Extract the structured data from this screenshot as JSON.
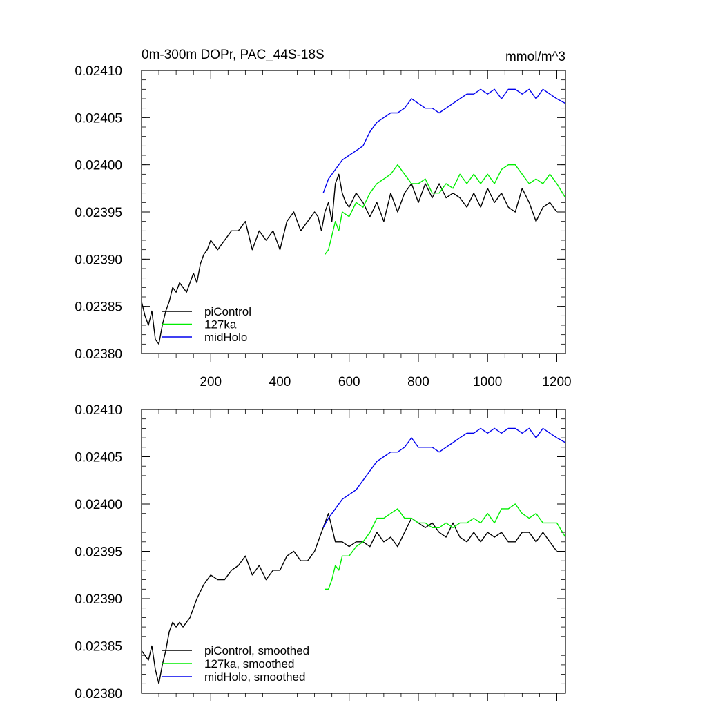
{
  "colors": {
    "piControl": "#000000",
    "127ka": "#00ee00",
    "midHolo": "#0000ee",
    "axis": "#000000",
    "background": "#ffffff"
  },
  "chart_data": [
    {
      "type": "line",
      "title": "0m-300m DOPr, PAC_44S-18S",
      "units": "mmol/m^3",
      "xlabel": "",
      "ylabel": "",
      "xlim": [
        0,
        1225
      ],
      "ylim": [
        0.0238,
        0.0241
      ],
      "xticks": [
        200,
        400,
        600,
        800,
        1000,
        1200
      ],
      "xtick_labels": [
        "200",
        "400",
        "600",
        "800",
        "1000",
        "1200"
      ],
      "yticks": [
        0.0238,
        0.02385,
        0.0239,
        0.02395,
        0.024,
        0.02405,
        0.0241
      ],
      "ytick_labels": [
        "0.02380",
        "0.02385",
        "0.02390",
        "0.02395",
        "0.02400",
        "0.02405",
        "0.02410"
      ],
      "grid": false,
      "legend_position": "bottom-left",
      "series": [
        {
          "name": "piControl",
          "color": "#000000",
          "x": [
            0,
            10,
            20,
            30,
            40,
            50,
            60,
            70,
            80,
            90,
            100,
            110,
            120,
            130,
            140,
            150,
            160,
            170,
            180,
            190,
            200,
            220,
            240,
            260,
            280,
            300,
            320,
            340,
            360,
            380,
            400,
            420,
            440,
            460,
            480,
            500,
            510,
            520,
            530,
            540,
            550,
            560,
            570,
            580,
            590,
            600,
            620,
            640,
            660,
            680,
            700,
            720,
            740,
            760,
            780,
            800,
            820,
            840,
            860,
            880,
            900,
            920,
            940,
            960,
            980,
            1000,
            1020,
            1040,
            1060,
            1080,
            1100,
            1120,
            1140,
            1160,
            1180,
            1200
          ],
          "y": [
            0.023855,
            0.02384,
            0.02383,
            0.023845,
            0.023815,
            0.02381,
            0.02383,
            0.023845,
            0.023855,
            0.02387,
            0.023865,
            0.023875,
            0.02387,
            0.023865,
            0.023875,
            0.023885,
            0.023875,
            0.023895,
            0.023905,
            0.02391,
            0.02392,
            0.02391,
            0.02392,
            0.02393,
            0.02393,
            0.02394,
            0.02391,
            0.02393,
            0.02392,
            0.02393,
            0.02391,
            0.02394,
            0.02395,
            0.02393,
            0.02394,
            0.02395,
            0.023945,
            0.02393,
            0.02395,
            0.02396,
            0.02394,
            0.02398,
            0.02399,
            0.02397,
            0.02396,
            0.023955,
            0.02397,
            0.02396,
            0.023945,
            0.02396,
            0.02394,
            0.02397,
            0.02395,
            0.02397,
            0.02398,
            0.02396,
            0.02398,
            0.023965,
            0.02398,
            0.023965,
            0.02397,
            0.023965,
            0.023955,
            0.02397,
            0.023955,
            0.023975,
            0.02396,
            0.02397,
            0.023955,
            0.02395,
            0.023975,
            0.02396,
            0.02394,
            0.023955,
            0.02396,
            0.02395
          ]
        },
        {
          "name": "127ka",
          "color": "#00ee00",
          "x": [
            530,
            540,
            550,
            560,
            570,
            580,
            600,
            620,
            640,
            660,
            680,
            700,
            720,
            740,
            760,
            780,
            800,
            820,
            840,
            860,
            880,
            900,
            920,
            940,
            960,
            980,
            1000,
            1020,
            1040,
            1060,
            1080,
            1100,
            1120,
            1140,
            1160,
            1180,
            1200,
            1225
          ],
          "y": [
            0.023905,
            0.02391,
            0.023925,
            0.02394,
            0.02393,
            0.02395,
            0.023945,
            0.02396,
            0.023955,
            0.02397,
            0.02398,
            0.023985,
            0.02399,
            0.024,
            0.02399,
            0.02398,
            0.02398,
            0.023985,
            0.02397,
            0.02397,
            0.02398,
            0.023975,
            0.02399,
            0.02398,
            0.02399,
            0.02398,
            0.02399,
            0.02398,
            0.023995,
            0.024,
            0.024,
            0.02399,
            0.02398,
            0.023985,
            0.02398,
            0.02399,
            0.02398,
            0.023965
          ]
        },
        {
          "name": "midHolo",
          "color": "#0000ee",
          "x": [
            525,
            540,
            560,
            580,
            600,
            620,
            640,
            660,
            680,
            700,
            720,
            740,
            760,
            780,
            800,
            820,
            840,
            860,
            880,
            900,
            920,
            940,
            960,
            980,
            1000,
            1020,
            1040,
            1060,
            1080,
            1100,
            1120,
            1140,
            1160,
            1180,
            1200,
            1225
          ],
          "y": [
            0.02397,
            0.023985,
            0.023995,
            0.024005,
            0.02401,
            0.024015,
            0.02402,
            0.024035,
            0.024045,
            0.02405,
            0.024055,
            0.024055,
            0.02406,
            0.02407,
            0.024065,
            0.02406,
            0.02406,
            0.024055,
            0.02406,
            0.024065,
            0.02407,
            0.024075,
            0.024075,
            0.02408,
            0.024075,
            0.02408,
            0.02407,
            0.02408,
            0.02408,
            0.024075,
            0.02408,
            0.02407,
            0.02408,
            0.024075,
            0.02407,
            0.024065
          ]
        }
      ],
      "legend": [
        "piControl",
        "127ka",
        "midHolo"
      ]
    },
    {
      "type": "line",
      "title": "",
      "xlabel": "",
      "ylabel": "",
      "xlim": [
        0,
        1225
      ],
      "ylim": [
        0.0238,
        0.0241
      ],
      "xticks": [
        200,
        400,
        600,
        800,
        1000,
        1200
      ],
      "yticks": [
        0.0238,
        0.02385,
        0.0239,
        0.02395,
        0.024,
        0.02405,
        0.0241
      ],
      "ytick_labels": [
        "0.02380",
        "0.02385",
        "0.02390",
        "0.02395",
        "0.02400",
        "0.02405",
        "0.02410"
      ],
      "grid": false,
      "legend_position": "bottom-left",
      "series": [
        {
          "name": "piControl, smoothed",
          "color": "#000000",
          "x": [
            0,
            10,
            20,
            30,
            40,
            50,
            60,
            70,
            80,
            90,
            100,
            110,
            120,
            140,
            160,
            180,
            200,
            220,
            240,
            260,
            280,
            300,
            320,
            340,
            360,
            380,
            400,
            420,
            440,
            460,
            480,
            500,
            520,
            540,
            560,
            580,
            600,
            620,
            640,
            660,
            680,
            700,
            720,
            740,
            760,
            780,
            800,
            820,
            840,
            860,
            880,
            900,
            920,
            940,
            960,
            980,
            1000,
            1020,
            1040,
            1060,
            1080,
            1100,
            1120,
            1140,
            1160,
            1180,
            1200
          ],
          "y": [
            0.023845,
            0.02384,
            0.023835,
            0.02385,
            0.023825,
            0.02381,
            0.02383,
            0.023845,
            0.023865,
            0.023875,
            0.02387,
            0.023875,
            0.02387,
            0.02388,
            0.0239,
            0.023915,
            0.023925,
            0.02392,
            0.02392,
            0.02393,
            0.023935,
            0.023945,
            0.023925,
            0.023935,
            0.02392,
            0.02393,
            0.02393,
            0.023945,
            0.02395,
            0.02394,
            0.02394,
            0.02395,
            0.02397,
            0.02399,
            0.02396,
            0.02396,
            0.023955,
            0.02396,
            0.02396,
            0.023955,
            0.02397,
            0.02396,
            0.023965,
            0.023955,
            0.02397,
            0.023985,
            0.02398,
            0.023975,
            0.02398,
            0.02397,
            0.023965,
            0.02398,
            0.023965,
            0.02396,
            0.02397,
            0.02396,
            0.02397,
            0.023965,
            0.02397,
            0.02396,
            0.02396,
            0.02397,
            0.02397,
            0.02396,
            0.02397,
            0.02396,
            0.02395
          ]
        },
        {
          "name": "127ka, smoothed",
          "color": "#00ee00",
          "x": [
            530,
            540,
            550,
            560,
            570,
            580,
            600,
            620,
            640,
            660,
            680,
            700,
            720,
            740,
            760,
            780,
            800,
            820,
            840,
            860,
            880,
            900,
            920,
            940,
            960,
            980,
            1000,
            1020,
            1040,
            1060,
            1080,
            1100,
            1120,
            1140,
            1160,
            1180,
            1200,
            1225
          ],
          "y": [
            0.02391,
            0.02391,
            0.02392,
            0.023935,
            0.02393,
            0.023945,
            0.023945,
            0.023955,
            0.02396,
            0.02397,
            0.023985,
            0.023985,
            0.02399,
            0.023995,
            0.023985,
            0.023985,
            0.02398,
            0.02398,
            0.023975,
            0.023975,
            0.02398,
            0.023975,
            0.02398,
            0.02398,
            0.023985,
            0.02398,
            0.02399,
            0.02398,
            0.023995,
            0.023995,
            0.024,
            0.02399,
            0.023985,
            0.02399,
            0.02398,
            0.02398,
            0.02398,
            0.023965
          ]
        },
        {
          "name": "midHolo, smoothed",
          "color": "#0000ee",
          "x": [
            525,
            540,
            560,
            580,
            600,
            620,
            640,
            660,
            680,
            700,
            720,
            740,
            760,
            780,
            800,
            820,
            840,
            860,
            880,
            900,
            920,
            940,
            960,
            980,
            1000,
            1020,
            1040,
            1060,
            1080,
            1100,
            1120,
            1140,
            1160,
            1180,
            1200,
            1225
          ],
          "y": [
            0.023975,
            0.023985,
            0.023995,
            0.024005,
            0.02401,
            0.024015,
            0.024025,
            0.024035,
            0.024045,
            0.02405,
            0.024055,
            0.024055,
            0.02406,
            0.02407,
            0.02406,
            0.02406,
            0.02406,
            0.024055,
            0.02406,
            0.024065,
            0.02407,
            0.024075,
            0.024075,
            0.02408,
            0.024075,
            0.02408,
            0.024075,
            0.02408,
            0.02408,
            0.024075,
            0.02408,
            0.02407,
            0.02408,
            0.024075,
            0.02407,
            0.024065
          ]
        }
      ],
      "legend": [
        "piControl, smoothed",
        "127ka, smoothed",
        "midHolo, smoothed"
      ]
    }
  ]
}
